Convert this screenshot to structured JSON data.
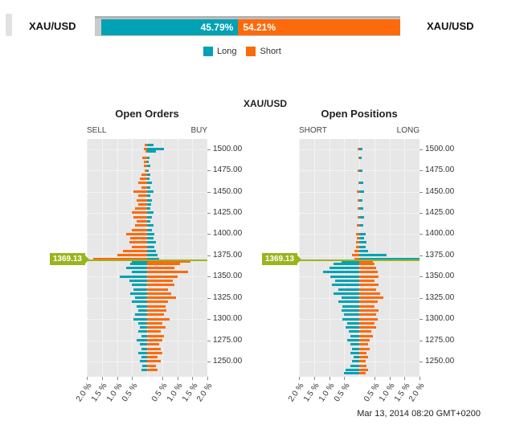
{
  "header": {
    "left_symbol": "XAU/USD",
    "right_symbol": "XAU/USD",
    "long_pct": 45.79,
    "short_pct": 54.21,
    "long_pct_label": "45.79%",
    "short_pct_label": "54.21%"
  },
  "legend": {
    "long_label": "Long",
    "short_label": "Short"
  },
  "title": "XAU/USD",
  "timestamp": "Mar 13, 2014 08:20 GMT+0200",
  "colors": {
    "long": "#00a2b3",
    "short": "#fc6a0c",
    "price_marker": "#9ab41e",
    "plot_bg": "#e7e7e7",
    "grid": "#ffffff"
  },
  "chart_data": [
    {
      "type": "bar",
      "title": "Open Orders",
      "left_label": "SELL",
      "right_label": "BUY",
      "current_price": 1369.13,
      "current_price_label": "1369.13",
      "xlim_pct": 2.0,
      "x_ticks": [
        "2.0 %",
        "1.5 %",
        "1.0 %",
        "0.5 %",
        "0.5 %",
        "1.0 %",
        "1.5 %",
        "2.0 %"
      ],
      "y_ticks": [
        "1500.00",
        "1475.00",
        "1450.00",
        "1425.00",
        "1400.00",
        "1375.00",
        "1350.00",
        "1325.00",
        "1300.00",
        "1275.00",
        "1250.00"
      ],
      "ylim": [
        1232,
        1512
      ],
      "bins": [
        [
          1505,
          0.08,
          0.2
        ],
        [
          1500,
          0.12,
          0.55
        ],
        [
          1497,
          0.05,
          0.3
        ],
        [
          1490,
          0.15,
          0.08
        ],
        [
          1485,
          0.1,
          0.05
        ],
        [
          1480,
          0.12,
          0.1
        ],
        [
          1475,
          0.08,
          0.05
        ],
        [
          1470,
          0.2,
          0.1
        ],
        [
          1465,
          0.25,
          0.08
        ],
        [
          1460,
          0.3,
          0.15
        ],
        [
          1455,
          0.2,
          0.1
        ],
        [
          1450,
          0.45,
          0.2
        ],
        [
          1445,
          0.3,
          0.1
        ],
        [
          1440,
          0.35,
          0.15
        ],
        [
          1435,
          0.3,
          0.12
        ],
        [
          1430,
          0.4,
          0.1
        ],
        [
          1425,
          0.5,
          0.2
        ],
        [
          1420,
          0.45,
          0.15
        ],
        [
          1415,
          0.35,
          0.1
        ],
        [
          1410,
          0.4,
          0.2
        ],
        [
          1405,
          0.5,
          0.15
        ],
        [
          1400,
          0.7,
          0.25
        ],
        [
          1395,
          0.55,
          0.2
        ],
        [
          1390,
          0.6,
          0.3
        ],
        [
          1385,
          0.5,
          0.25
        ],
        [
          1380,
          0.8,
          0.3
        ],
        [
          1375,
          1.0,
          0.35
        ],
        [
          1371,
          1.8,
          0.4
        ],
        [
          1368,
          0.5,
          1.45
        ],
        [
          1365,
          0.55,
          1.1
        ],
        [
          1360,
          0.7,
          0.9
        ],
        [
          1355,
          0.5,
          1.35
        ],
        [
          1350,
          0.9,
          1.0
        ],
        [
          1345,
          0.6,
          0.85
        ],
        [
          1340,
          0.5,
          0.9
        ],
        [
          1335,
          0.45,
          0.7
        ],
        [
          1330,
          0.55,
          0.8
        ],
        [
          1325,
          0.4,
          0.95
        ],
        [
          1320,
          0.5,
          0.7
        ],
        [
          1315,
          0.35,
          0.6
        ],
        [
          1310,
          0.3,
          0.65
        ],
        [
          1305,
          0.4,
          0.55
        ],
        [
          1300,
          0.45,
          0.75
        ],
        [
          1295,
          0.3,
          0.5
        ],
        [
          1290,
          0.25,
          0.6
        ],
        [
          1285,
          0.3,
          0.45
        ],
        [
          1280,
          0.2,
          0.55
        ],
        [
          1275,
          0.35,
          0.5
        ],
        [
          1270,
          0.25,
          0.4
        ],
        [
          1265,
          0.2,
          0.45
        ],
        [
          1260,
          0.3,
          0.5
        ],
        [
          1255,
          0.2,
          0.35
        ],
        [
          1250,
          0.25,
          0.45
        ],
        [
          1245,
          0.15,
          0.3
        ],
        [
          1240,
          0.2,
          0.35
        ]
      ]
    },
    {
      "type": "bar",
      "title": "Open Positions",
      "left_label": "SHORT",
      "right_label": "LONG",
      "current_price": 1369.13,
      "current_price_label": "1369.13",
      "xlim_pct": 2.0,
      "x_ticks": [
        "2.0 %",
        "1.5 %",
        "1.0 %",
        "0.5 %",
        "0.5 %",
        "1.0 %",
        "1.5 %",
        "2.0 %"
      ],
      "y_ticks": [
        "1500.00",
        "1475.00",
        "1450.00",
        "1425.00",
        "1400.00",
        "1375.00",
        "1350.00",
        "1325.00",
        "1300.00",
        "1275.00",
        "1250.00"
      ],
      "ylim": [
        1232,
        1512
      ],
      "bins": [
        [
          1500,
          0.05,
          0.1
        ],
        [
          1490,
          0.04,
          0.08
        ],
        [
          1475,
          0.05,
          0.1
        ],
        [
          1460,
          0.04,
          0.12
        ],
        [
          1450,
          0.08,
          0.15
        ],
        [
          1440,
          0.05,
          0.1
        ],
        [
          1430,
          0.05,
          0.12
        ],
        [
          1420,
          0.06,
          0.15
        ],
        [
          1410,
          0.08,
          0.12
        ],
        [
          1400,
          0.1,
          0.2
        ],
        [
          1395,
          0.08,
          0.15
        ],
        [
          1390,
          0.1,
          0.25
        ],
        [
          1385,
          0.12,
          0.2
        ],
        [
          1380,
          0.15,
          0.3
        ],
        [
          1375,
          0.25,
          0.9
        ],
        [
          1371,
          0.15,
          2.0
        ],
        [
          1368,
          0.6,
          0.45
        ],
        [
          1365,
          0.85,
          0.5
        ],
        [
          1360,
          1.0,
          0.55
        ],
        [
          1355,
          1.2,
          0.6
        ],
        [
          1350,
          0.95,
          0.65
        ],
        [
          1345,
          0.8,
          0.5
        ],
        [
          1340,
          0.9,
          0.65
        ],
        [
          1335,
          0.7,
          0.55
        ],
        [
          1330,
          0.85,
          0.7
        ],
        [
          1325,
          0.6,
          0.8
        ],
        [
          1320,
          0.7,
          0.6
        ],
        [
          1315,
          0.55,
          0.5
        ],
        [
          1310,
          0.6,
          0.65
        ],
        [
          1305,
          0.5,
          0.55
        ],
        [
          1300,
          0.55,
          0.6
        ],
        [
          1295,
          0.4,
          0.5
        ],
        [
          1290,
          0.45,
          0.55
        ],
        [
          1285,
          0.35,
          0.4
        ],
        [
          1280,
          0.3,
          0.45
        ],
        [
          1275,
          0.4,
          0.35
        ],
        [
          1270,
          0.3,
          0.3
        ],
        [
          1265,
          0.25,
          0.35
        ],
        [
          1260,
          0.3,
          0.25
        ],
        [
          1255,
          0.2,
          0.3
        ],
        [
          1250,
          0.25,
          0.2
        ],
        [
          1245,
          0.3,
          0.25
        ],
        [
          1240,
          0.45,
          0.3
        ],
        [
          1236,
          0.5,
          0.2
        ]
      ]
    }
  ]
}
